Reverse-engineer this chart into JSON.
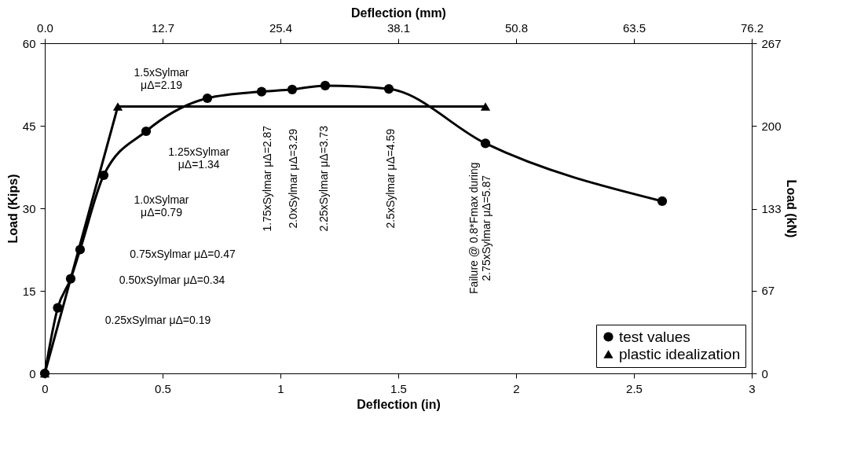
{
  "chart_data": {
    "type": "line",
    "xlabel": "Deflection (in)",
    "x2label": "Deflection (mm)",
    "ylabel": "Load (Kips)",
    "y2label": "Load (kN)",
    "xlim": [
      0,
      3
    ],
    "xticks": [
      {
        "value": 0,
        "label": "0"
      },
      0.5,
      {
        "value": 1,
        "label": "1"
      },
      1.5,
      {
        "value": 2,
        "label": "2"
      },
      2.5,
      {
        "value": 3,
        "label": "3"
      }
    ],
    "ylim": [
      0,
      60
    ],
    "yticks": [
      0,
      15,
      30,
      45,
      60
    ],
    "x2lim": [
      0,
      76.2
    ],
    "x2ticks": [
      {
        "value": 0,
        "label": "0.0"
      },
      12.7,
      25.4,
      38.1,
      50.8,
      63.5,
      76.2
    ],
    "y2lim": [
      0,
      267
    ],
    "y2ticks": [
      0,
      67,
      133,
      200,
      267
    ],
    "legend": "bottom right",
    "series": [
      {
        "name": "test values",
        "color": "#000000",
        "marker": "circle",
        "x": [
          0,
          0.055,
          0.11,
          0.15,
          0.25,
          0.43,
          0.69,
          0.92,
          1.05,
          1.19,
          1.46,
          1.87,
          2.62
        ],
        "values": [
          0,
          11.9,
          17.2,
          22.5,
          36,
          44,
          50,
          51.2,
          51.6,
          52.3,
          51.7,
          41.8,
          31.3
        ]
      },
      {
        "name": "plastic idealization",
        "color": "#000000",
        "marker": "triangle",
        "x": [
          0,
          0.31,
          1.87
        ],
        "values": [
          0,
          48.5,
          48.5
        ]
      }
    ],
    "annotations": [
      "1.5xSylmar\nμΔ=2.19",
      "1.25xSylmar\nμΔ=1.34",
      "1.0xSylmar\nμΔ=0.79",
      "0.75xSylmar μΔ=0.47",
      "0.50xSylmar μΔ=0.34",
      "0.25xSylmar μΔ=0.19",
      "1.75xSylmar μΔ=2.87",
      "2.0xSylmar μΔ=3.29",
      "2.25xSylmar μΔ=3.73",
      "2.5xSylmar μΔ=4.59",
      "Failure @ 0.8*Fmax during\n2.75xSylmar μΔ=5.87"
    ]
  }
}
